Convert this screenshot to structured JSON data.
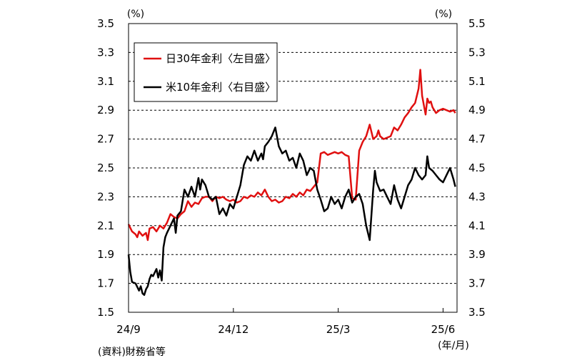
{
  "chart_data": {
    "type": "line",
    "y_left_unit": "(%)",
    "y_right_unit": "(%)",
    "x_unit_label": "(年/月)",
    "source_note": "(資料)財務省等",
    "y_left": {
      "min": 1.5,
      "max": 3.5,
      "ticks": [
        "3.5",
        "3.3",
        "3.1",
        "2.9",
        "2.7",
        "2.5",
        "2.3",
        "2.1",
        "1.9",
        "1.7",
        "1.5"
      ]
    },
    "y_right": {
      "min": 3.5,
      "max": 5.5,
      "ticks": [
        "5.5",
        "5.3",
        "5.1",
        "4.9",
        "4.7",
        "4.5",
        "4.3",
        "4.1",
        "3.9",
        "3.7",
        "3.5"
      ]
    },
    "x_ticks": [
      {
        "label": "24/9",
        "month_index": 0
      },
      {
        "label": "24/12",
        "month_index": 3
      },
      {
        "label": "25/3",
        "month_index": 6
      },
      {
        "label": "25/6",
        "month_index": 9
      }
    ],
    "x_range_months": [
      0,
      9.4
    ],
    "grid": "horizontal-dashed",
    "legend": {
      "position": "top-left",
      "entries": [
        "日30年金利〈左目盛〉",
        "米10年金利〈右目盛〉"
      ]
    },
    "series": [
      {
        "name": "日30年金利〈左目盛〉",
        "axis": "left",
        "color": "#e01010",
        "x": [
          0,
          0.1,
          0.2,
          0.25,
          0.3,
          0.4,
          0.5,
          0.55,
          0.6,
          0.7,
          0.8,
          0.9,
          1,
          1.1,
          1.2,
          1.3,
          1.4,
          1.5,
          1.6,
          1.7,
          1.8,
          1.9,
          2,
          2.1,
          2.2,
          2.3,
          2.4,
          2.5,
          2.6,
          2.7,
          2.8,
          2.9,
          3,
          3.1,
          3.2,
          3.3,
          3.4,
          3.5,
          3.6,
          3.7,
          3.8,
          3.9,
          4,
          4.1,
          4.2,
          4.3,
          4.4,
          4.5,
          4.6,
          4.7,
          4.8,
          4.9,
          5,
          5.1,
          5.2,
          5.3,
          5.4,
          5.5,
          5.6,
          5.7,
          5.8,
          5.9,
          6,
          6.1,
          6.2,
          6.3,
          6.4,
          6.5,
          6.6,
          6.7,
          6.8,
          6.9,
          7,
          7.1,
          7.15,
          7.2,
          7.3,
          7.4,
          7.5,
          7.6,
          7.7,
          7.8,
          7.9,
          8,
          8.1,
          8.2,
          8.3,
          8.35,
          8.4,
          8.5,
          8.55,
          8.6,
          8.65,
          8.7,
          8.8,
          8.9,
          9,
          9.1,
          9.2,
          9.3,
          9.35
        ],
        "values": [
          2.11,
          2.06,
          2.04,
          2.02,
          2.06,
          2.03,
          2.05,
          2.0,
          2.08,
          2.09,
          2.06,
          2.1,
          2.08,
          2.12,
          2.18,
          2.16,
          2.15,
          2.18,
          2.2,
          2.27,
          2.23,
          2.26,
          2.25,
          2.29,
          2.3,
          2.3,
          2.27,
          2.3,
          2.29,
          2.3,
          2.28,
          2.27,
          2.28,
          2.26,
          2.27,
          2.3,
          2.29,
          2.31,
          2.3,
          2.33,
          2.31,
          2.35,
          2.3,
          2.27,
          2.28,
          2.26,
          2.27,
          2.3,
          2.29,
          2.32,
          2.3,
          2.33,
          2.31,
          2.35,
          2.34,
          2.37,
          2.4,
          2.6,
          2.61,
          2.59,
          2.6,
          2.61,
          2.6,
          2.61,
          2.59,
          2.58,
          2.29,
          2.28,
          2.62,
          2.68,
          2.72,
          2.8,
          2.7,
          2.72,
          2.76,
          2.72,
          2.7,
          2.71,
          2.72,
          2.78,
          2.76,
          2.8,
          2.85,
          2.88,
          2.92,
          2.95,
          3.05,
          3.18,
          3.0,
          2.87,
          2.98,
          2.95,
          2.96,
          2.92,
          2.88,
          2.9,
          2.91,
          2.9,
          2.89,
          2.9,
          2.88
        ]
      },
      {
        "name": "米10年金利〈右目盛〉",
        "axis": "right",
        "color": "#000000",
        "x": [
          0,
          0.05,
          0.1,
          0.2,
          0.3,
          0.35,
          0.4,
          0.45,
          0.5,
          0.55,
          0.6,
          0.65,
          0.7,
          0.8,
          0.85,
          0.9,
          0.95,
          1,
          1.05,
          1.1,
          1.2,
          1.3,
          1.35,
          1.4,
          1.5,
          1.6,
          1.7,
          1.8,
          1.9,
          2,
          2.05,
          2.1,
          2.2,
          2.3,
          2.4,
          2.5,
          2.6,
          2.7,
          2.8,
          2.9,
          3,
          3.1,
          3.2,
          3.3,
          3.4,
          3.5,
          3.6,
          3.7,
          3.8,
          3.85,
          3.9,
          4,
          4.1,
          4.2,
          4.3,
          4.4,
          4.5,
          4.6,
          4.7,
          4.8,
          4.9,
          5,
          5.1,
          5.2,
          5.3,
          5.4,
          5.5,
          5.6,
          5.7,
          5.8,
          5.9,
          6,
          6.1,
          6.2,
          6.3,
          6.4,
          6.5,
          6.6,
          6.7,
          6.8,
          6.9,
          7,
          7.05,
          7.1,
          7.2,
          7.3,
          7.4,
          7.5,
          7.6,
          7.7,
          7.8,
          7.9,
          8,
          8.1,
          8.2,
          8.3,
          8.4,
          8.5,
          8.55,
          8.6,
          8.7,
          8.8,
          8.9,
          9,
          9.1,
          9.2,
          9.3,
          9.35
        ],
        "values": [
          3.9,
          3.78,
          3.71,
          3.7,
          3.65,
          3.68,
          3.63,
          3.62,
          3.66,
          3.68,
          3.73,
          3.76,
          3.75,
          3.8,
          3.74,
          3.79,
          3.72,
          3.95,
          4.02,
          4.05,
          4.1,
          4.15,
          4.05,
          4.17,
          4.2,
          4.35,
          4.3,
          4.37,
          4.3,
          4.43,
          4.35,
          4.42,
          4.38,
          4.3,
          4.28,
          4.3,
          4.18,
          4.22,
          4.17,
          4.25,
          4.22,
          4.3,
          4.38,
          4.52,
          4.58,
          4.55,
          4.62,
          4.55,
          4.6,
          4.56,
          4.65,
          4.68,
          4.72,
          4.78,
          4.65,
          4.6,
          4.62,
          4.55,
          4.57,
          4.5,
          4.6,
          4.55,
          4.45,
          4.5,
          4.48,
          4.35,
          4.28,
          4.2,
          4.22,
          4.3,
          4.25,
          4.28,
          4.22,
          4.3,
          4.35,
          4.26,
          4.3,
          4.32,
          4.25,
          4.1,
          4.0,
          4.35,
          4.48,
          4.4,
          4.34,
          4.35,
          4.3,
          4.25,
          4.38,
          4.28,
          4.22,
          4.3,
          4.38,
          4.42,
          4.5,
          4.45,
          4.42,
          4.45,
          4.58,
          4.5,
          4.48,
          4.45,
          4.42,
          4.4,
          4.45,
          4.5,
          4.42,
          4.37
        ]
      }
    ]
  }
}
